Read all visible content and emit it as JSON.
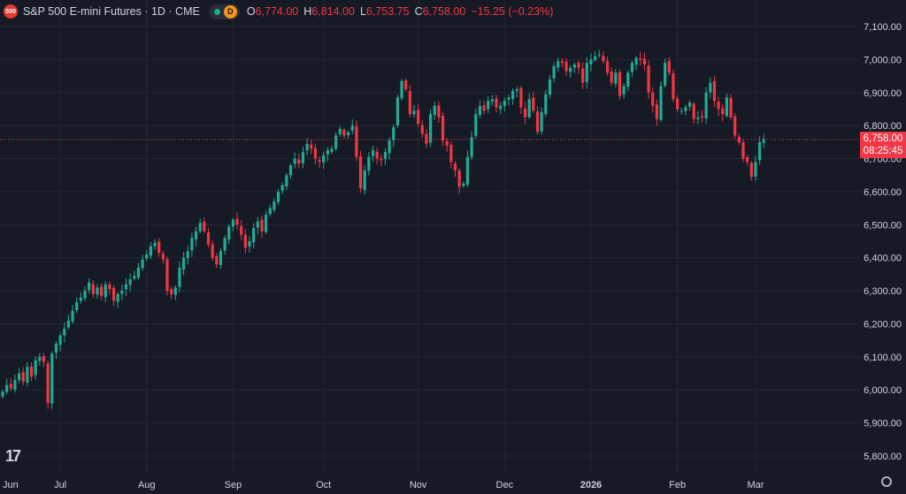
{
  "legend": {
    "badge": "500",
    "title": "S&P 500 E-mini Futures · 1D · CME",
    "status_letter": "D",
    "o_key": "O",
    "o_val": "6,774.00",
    "h_key": "H",
    "h_val": "6,814.00",
    "l_key": "L",
    "l_val": "6,753.75",
    "c_key": "C",
    "c_val": "6,758.00",
    "change": "−15.25 (−0.23%)"
  },
  "price_tag": {
    "price": "6,758.00",
    "countdown": "08:25:45"
  },
  "colors": {
    "background": "#161a25",
    "up": "#22ab94",
    "down": "#f23645",
    "grid": "#232734",
    "axis_text": "#d1d4dc"
  },
  "icons": {
    "logo": "tradingview-logo-icon",
    "settings": "gear-icon"
  },
  "chart_data": {
    "type": "candlestick",
    "series_name": "",
    "y_axis": {
      "min": 5760,
      "max": 7120,
      "ticks": [
        5800,
        5900,
        6000,
        6100,
        6200,
        6300,
        6400,
        6500,
        6600,
        6700,
        6800,
        6900,
        7000,
        7100
      ],
      "tick_labels": [
        "5,800.00",
        "5,900.00",
        "6,000.00",
        "6,100.00",
        "6,200.00",
        "6,300.00",
        "6,400.00",
        "6,500.00",
        "6,600.00",
        "6,700.00",
        "6,800.00",
        "6,900.00",
        "7,000.00",
        "7,100.00"
      ]
    },
    "x_axis": {
      "labels": [
        "Jun",
        "Jul",
        "Aug",
        "Sep",
        "Oct",
        "Nov",
        "Dec",
        "2026",
        "Feb",
        "Mar"
      ],
      "label_bar_index": [
        -8,
        14,
        35,
        56,
        78,
        101,
        122,
        143,
        164,
        183
      ]
    },
    "last_price": 6758,
    "grid": true,
    "close": [
      5995,
      6015,
      6005,
      6030,
      6050,
      6025,
      6070,
      6040,
      6090,
      6100,
      6085,
      5960,
      6110,
      6140,
      6165,
      6185,
      6210,
      6240,
      6265,
      6280,
      6300,
      6325,
      6290,
      6310,
      6285,
      6320,
      6305,
      6270,
      6290,
      6300,
      6320,
      6335,
      6345,
      6370,
      6395,
      6410,
      6435,
      6445,
      6415,
      6395,
      6300,
      6290,
      6310,
      6370,
      6400,
      6420,
      6460,
      6480,
      6505,
      6480,
      6440,
      6400,
      6380,
      6420,
      6460,
      6495,
      6515,
      6500,
      6470,
      6430,
      6450,
      6490,
      6510,
      6480,
      6530,
      6550,
      6570,
      6600,
      6620,
      6650,
      6680,
      6700,
      6685,
      6720,
      6745,
      6730,
      6700,
      6690,
      6710,
      6725,
      6730,
      6770,
      6790,
      6770,
      6780,
      6800,
      6705,
      6610,
      6665,
      6705,
      6725,
      6700,
      6695,
      6720,
      6755,
      6795,
      6885,
      6935,
      6910,
      6835,
      6845,
      6805,
      6775,
      6745,
      6835,
      6860,
      6825,
      6755,
      6740,
      6690,
      6665,
      6615,
      6625,
      6705,
      6765,
      6835,
      6860,
      6845,
      6875,
      6880,
      6855,
      6860,
      6875,
      6885,
      6905,
      6910,
      6855,
      6825,
      6880,
      6845,
      6780,
      6840,
      6895,
      6940,
      6980,
      6995,
      6990,
      6965,
      6975,
      6985,
      6975,
      6930,
      6990,
      7000,
      7010,
      7015,
      6995,
      6960,
      6930,
      6960,
      6890,
      6920,
      6960,
      6990,
      7005,
      7000,
      6985,
      6900,
      6860,
      6820,
      6920,
      6990,
      6960,
      6880,
      6850,
      6845,
      6855,
      6870,
      6820,
      6825,
      6825,
      6900,
      6930,
      6875,
      6850,
      6835,
      6885,
      6825,
      6770,
      6750,
      6700,
      6690,
      6645,
      6690,
      6750,
      6758
    ]
  }
}
